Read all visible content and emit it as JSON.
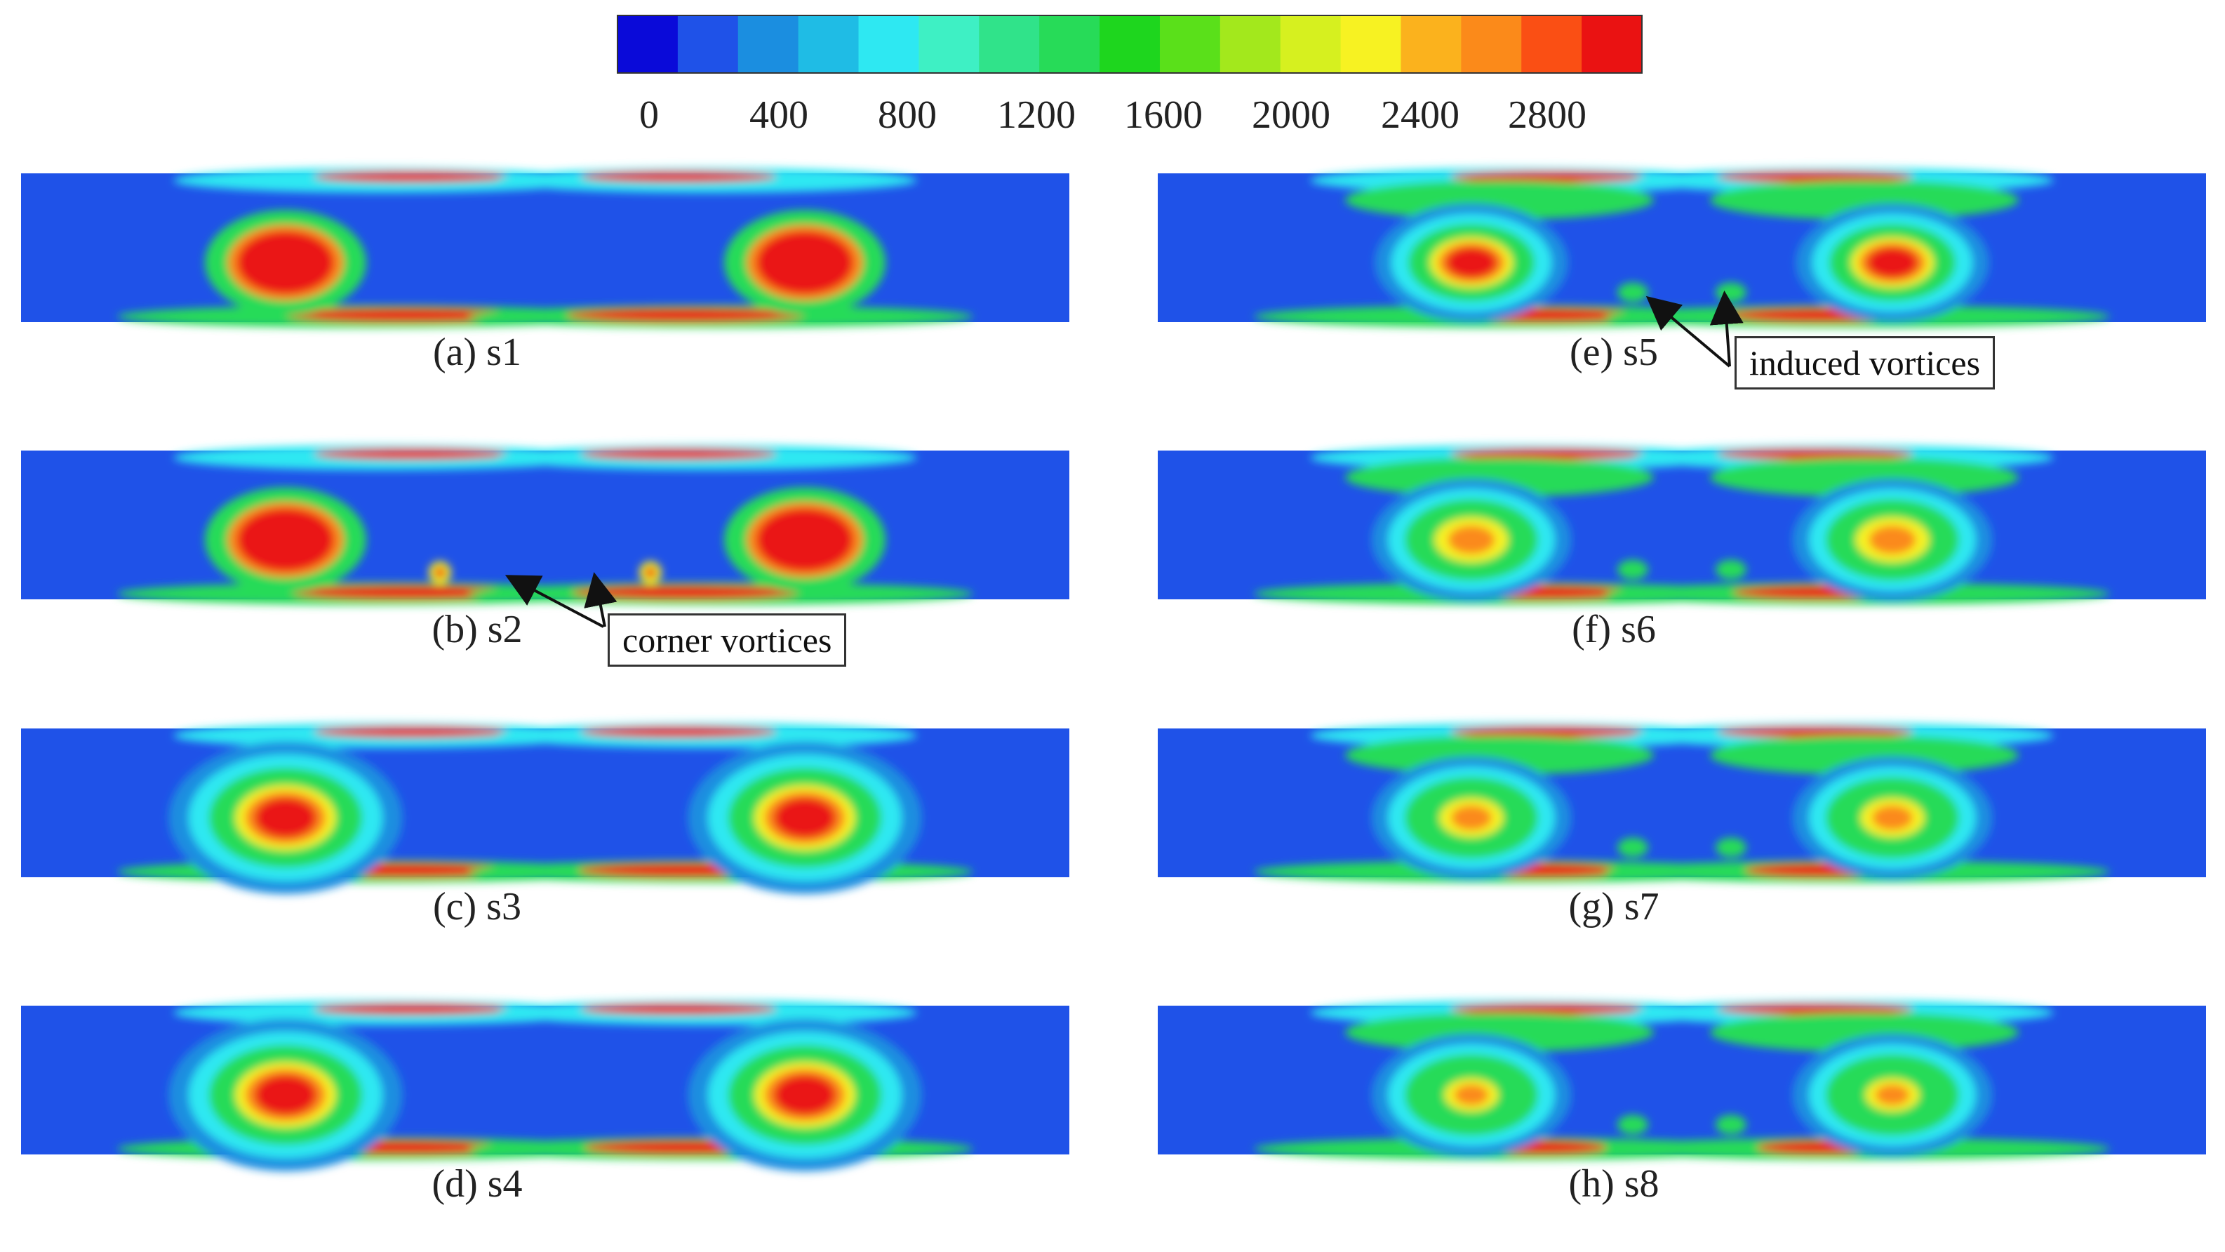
{
  "colorbar": {
    "colors": [
      "#0a0ad9",
      "#1f52e8",
      "#1b8ee0",
      "#1fbce5",
      "#2ee8f2",
      "#3ef0c4",
      "#30e38a",
      "#27db58",
      "#1ed61e",
      "#5ae01a",
      "#a3e81c",
      "#d6f01f",
      "#f7f222",
      "#fbb21d",
      "#fb8a1a",
      "#fa4f14",
      "#ea1212"
    ],
    "ticks": [
      "0",
      "400",
      "800",
      "1200",
      "1600",
      "2000",
      "2400",
      "2800"
    ]
  },
  "panels": [
    {
      "caption": "(a) s1",
      "level": 1.0
    },
    {
      "caption": "(b) s2",
      "level": 0.95
    },
    {
      "caption": "(c) s3",
      "level": 0.9
    },
    {
      "caption": "(d) s4",
      "level": 0.85
    },
    {
      "caption": "(e) s5",
      "level": 0.8
    },
    {
      "caption": "(f) s6",
      "level": 0.75
    },
    {
      "caption": "(g) s7",
      "level": 0.65
    },
    {
      "caption": "(h) s8",
      "level": 0.55
    }
  ],
  "annotations": {
    "corner": "corner vortices",
    "induced": "induced vortices"
  }
}
